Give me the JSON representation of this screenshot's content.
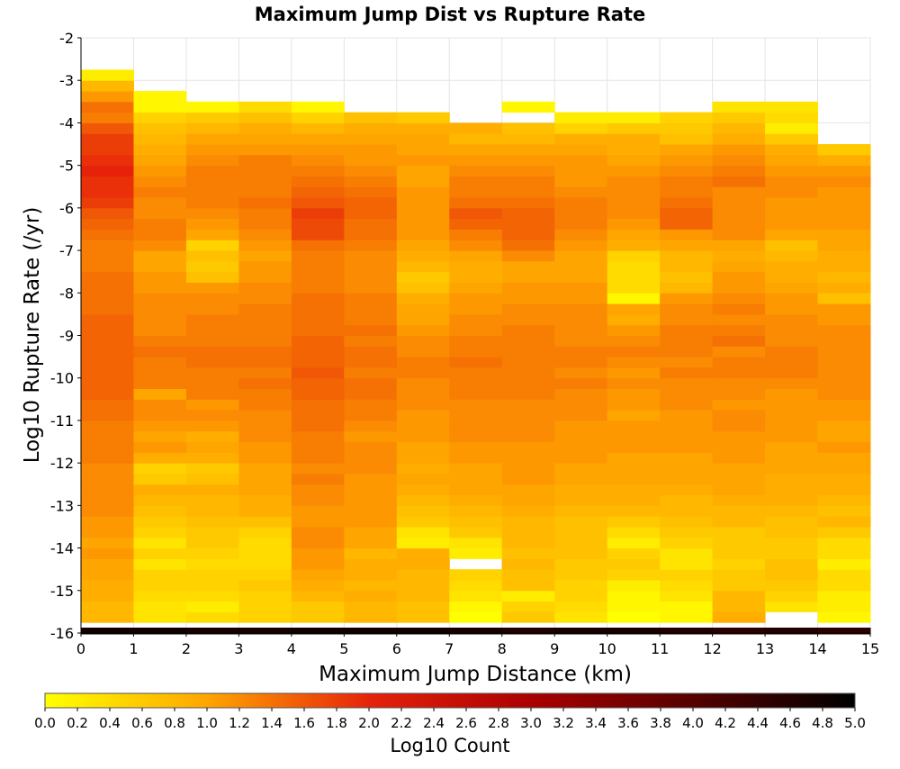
{
  "chart_data": {
    "type": "heatmap",
    "title": "Maximum Jump Dist vs Rupture Rate",
    "xlabel": "Maximum Jump Distance (km)",
    "ylabel": "Log10 Rupture Rate (/yr)",
    "xlim": [
      0,
      15
    ],
    "ylim": [
      -16,
      -2
    ],
    "x_ticks": [
      "0",
      "1",
      "2",
      "3",
      "4",
      "5",
      "6",
      "7",
      "8",
      "9",
      "10",
      "11",
      "12",
      "13",
      "14",
      "15"
    ],
    "y_ticks": [
      "-2",
      "-3",
      "-4",
      "-5",
      "-6",
      "-7",
      "-8",
      "-9",
      "-10",
      "-11",
      "-12",
      "-13",
      "-14",
      "-15",
      "-16"
    ],
    "x_bins": [
      0,
      1,
      2,
      3,
      4,
      5,
      6,
      7,
      8,
      9,
      10,
      11,
      12,
      13,
      14
    ],
    "y_bins": [
      -16.0,
      -15.75,
      -15.5,
      -15.25,
      -15.0,
      -14.75,
      -14.5,
      -14.25,
      -14.0,
      -13.75,
      -13.5,
      -13.25,
      -13.0,
      -12.75,
      -12.5,
      -12.25,
      -12.0,
      -11.75,
      -11.5,
      -11.25,
      -11.0,
      -10.75,
      -10.5,
      -10.25,
      -10.0,
      -9.75,
      -9.5,
      -9.25,
      -9.0,
      -8.75,
      -8.5,
      -8.25,
      -8.0,
      -7.75,
      -7.5,
      -7.25,
      -7.0,
      -6.75,
      -6.5,
      -6.25,
      -6.0,
      -5.75,
      -5.5,
      -5.25,
      -5.0,
      -4.75,
      -4.5,
      -4.25,
      -4.0,
      -3.75,
      -3.5,
      -3.25,
      -3.0
    ],
    "bin_width_x": 1,
    "bin_height_y": 0.25,
    "colorbar": {
      "label": "Log10 Count",
      "range": [
        0,
        5
      ],
      "ticks": [
        "0.0",
        "0.2",
        "0.4",
        "0.6",
        "0.8",
        "1.0",
        "1.2",
        "1.4",
        "1.6",
        "1.8",
        "2.0",
        "2.2",
        "2.4",
        "2.6",
        "2.8",
        "3.0",
        "3.2",
        "3.4",
        "3.6",
        "3.8",
        "4.0",
        "4.2",
        "4.4",
        "4.6",
        "4.8",
        "5.0"
      ],
      "stops": [
        "#ffff00",
        "#ffa500",
        "#e6230a",
        "#aa0000",
        "#550000",
        "#000000"
      ]
    },
    "grid": true,
    "values": [
      [
        4.8,
        4.8,
        4.7,
        4.7,
        4.8,
        4.8,
        4.8,
        4.7,
        4.6,
        4.7,
        4.7,
        4.6,
        4.5,
        4.6,
        4.5
      ],
      [
        0.8,
        0.3,
        0.4,
        0.5,
        0.6,
        0.8,
        0.7,
        0.0,
        0.6,
        0.3,
        0.0,
        0.1,
        0.9,
        null,
        0.1
      ],
      [
        0.8,
        0.3,
        0.2,
        0.5,
        0.6,
        0.8,
        0.7,
        0.1,
        0.5,
        0.4,
        0.1,
        0.1,
        0.8,
        0.3,
        0.2
      ],
      [
        0.9,
        0.4,
        0.4,
        0.5,
        0.8,
        0.9,
        0.8,
        0.3,
        0.2,
        0.5,
        0.1,
        0.3,
        0.8,
        0.5,
        0.2
      ],
      [
        0.9,
        0.5,
        0.5,
        0.6,
        0.9,
        0.8,
        0.8,
        0.4,
        0.7,
        0.5,
        0.2,
        0.4,
        0.6,
        0.6,
        0.4
      ],
      [
        1.0,
        0.5,
        0.5,
        0.5,
        1.0,
        0.9,
        0.8,
        0.5,
        0.7,
        0.6,
        0.5,
        0.5,
        0.6,
        0.7,
        0.4
      ],
      [
        1.0,
        0.3,
        0.4,
        0.4,
        1.1,
        0.9,
        0.9,
        null,
        0.8,
        0.6,
        0.6,
        0.3,
        0.5,
        0.7,
        0.2
      ],
      [
        1.1,
        0.5,
        0.5,
        0.4,
        1.1,
        0.8,
        0.9,
        0.2,
        0.7,
        0.7,
        0.5,
        0.3,
        0.6,
        0.6,
        0.4
      ],
      [
        1.0,
        0.3,
        0.6,
        0.4,
        1.2,
        1.0,
        0.2,
        0.3,
        0.8,
        0.7,
        0.2,
        0.5,
        0.6,
        0.6,
        0.4
      ],
      [
        1.1,
        0.5,
        0.6,
        0.5,
        1.2,
        1.0,
        0.3,
        0.6,
        0.8,
        0.7,
        0.4,
        0.6,
        0.6,
        0.7,
        0.6
      ],
      [
        1.1,
        0.6,
        0.7,
        0.7,
        1.1,
        1.1,
        0.6,
        0.7,
        0.8,
        0.7,
        0.6,
        0.7,
        0.8,
        0.7,
        0.8
      ],
      [
        1.2,
        0.7,
        0.8,
        0.9,
        1.1,
        1.1,
        0.7,
        0.8,
        0.9,
        0.8,
        0.8,
        0.8,
        0.8,
        0.8,
        0.7
      ],
      [
        1.2,
        0.8,
        0.8,
        0.9,
        1.2,
        1.1,
        0.8,
        0.9,
        1.0,
        0.9,
        0.9,
        0.8,
        0.9,
        0.9,
        0.8
      ],
      [
        1.2,
        0.9,
        0.9,
        1.0,
        1.2,
        1.1,
        0.9,
        1.0,
        1.0,
        0.9,
        0.9,
        0.9,
        1.0,
        0.9,
        0.9
      ],
      [
        1.2,
        0.6,
        0.7,
        1.0,
        1.3,
        1.1,
        1.0,
        1.0,
        1.1,
        1.0,
        1.0,
        1.0,
        1.0,
        0.9,
        0.9
      ],
      [
        1.2,
        0.5,
        0.6,
        1.0,
        1.2,
        1.2,
        0.9,
        1.0,
        1.1,
        1.0,
        1.0,
        1.0,
        1.0,
        1.0,
        1.0
      ],
      [
        1.3,
        0.9,
        0.9,
        1.1,
        1.3,
        1.2,
        1.0,
        1.1,
        1.1,
        1.1,
        1.0,
        1.0,
        1.1,
        1.0,
        1.0
      ],
      [
        1.3,
        1.1,
        1.0,
        1.1,
        1.3,
        1.2,
        1.0,
        1.1,
        1.1,
        1.1,
        1.1,
        1.1,
        1.1,
        1.0,
        1.1
      ],
      [
        1.3,
        1.0,
        0.9,
        1.2,
        1.3,
        1.1,
        1.1,
        1.2,
        1.2,
        1.1,
        1.1,
        1.1,
        1.1,
        1.1,
        1.0
      ],
      [
        1.3,
        1.1,
        1.1,
        1.2,
        1.4,
        1.2,
        1.1,
        1.2,
        1.2,
        1.1,
        1.1,
        1.1,
        1.2,
        1.1,
        1.0
      ],
      [
        1.4,
        1.2,
        1.2,
        1.2,
        1.4,
        1.3,
        1.1,
        1.2,
        1.2,
        1.2,
        1.0,
        1.1,
        1.2,
        1.1,
        1.1
      ],
      [
        1.4,
        1.2,
        1.1,
        1.3,
        1.4,
        1.3,
        1.2,
        1.2,
        1.2,
        1.2,
        1.1,
        1.2,
        1.1,
        1.1,
        1.1
      ],
      [
        1.5,
        1.0,
        1.3,
        1.3,
        1.5,
        1.4,
        1.2,
        1.3,
        1.3,
        1.2,
        1.1,
        1.2,
        1.2,
        1.1,
        1.2
      ],
      [
        1.5,
        1.3,
        1.3,
        1.4,
        1.5,
        1.4,
        1.2,
        1.3,
        1.3,
        1.3,
        1.2,
        1.2,
        1.2,
        1.2,
        1.2
      ],
      [
        1.5,
        1.3,
        1.3,
        1.3,
        1.6,
        1.3,
        1.3,
        1.3,
        1.3,
        1.2,
        1.1,
        1.3,
        1.3,
        1.3,
        1.2
      ],
      [
        1.5,
        1.3,
        1.4,
        1.4,
        1.5,
        1.4,
        1.3,
        1.4,
        1.3,
        1.3,
        1.2,
        1.2,
        1.3,
        1.3,
        1.2
      ],
      [
        1.5,
        1.4,
        1.4,
        1.4,
        1.5,
        1.4,
        1.2,
        1.3,
        1.3,
        1.3,
        1.3,
        1.3,
        1.2,
        1.3,
        1.2
      ],
      [
        1.5,
        1.3,
        1.3,
        1.3,
        1.5,
        1.3,
        1.2,
        1.3,
        1.3,
        1.2,
        1.2,
        1.3,
        1.4,
        1.2,
        1.2
      ],
      [
        1.5,
        1.2,
        1.3,
        1.3,
        1.4,
        1.4,
        1.1,
        1.2,
        1.3,
        1.2,
        1.1,
        1.3,
        1.3,
        1.2,
        1.2
      ],
      [
        1.5,
        1.2,
        1.3,
        1.3,
        1.4,
        1.3,
        1.0,
        1.2,
        1.2,
        1.2,
        0.9,
        1.2,
        1.2,
        1.2,
        1.1
      ],
      [
        1.4,
        1.2,
        1.2,
        1.3,
        1.4,
        1.3,
        1.0,
        1.1,
        1.2,
        1.2,
        1.0,
        1.2,
        1.3,
        1.1,
        1.1
      ],
      [
        1.4,
        1.2,
        1.2,
        1.2,
        1.4,
        1.3,
        0.9,
        1.1,
        1.1,
        1.1,
        0.1,
        1.1,
        1.2,
        1.1,
        0.7
      ],
      [
        1.4,
        1.1,
        1.1,
        1.2,
        1.3,
        1.2,
        0.7,
        1.0,
        1.1,
        1.1,
        0.4,
        0.8,
        1.1,
        1.0,
        0.9
      ],
      [
        1.4,
        1.1,
        0.7,
        1.1,
        1.3,
        1.2,
        0.6,
        0.9,
        1.0,
        1.0,
        0.4,
        0.7,
        1.1,
        0.9,
        0.8
      ],
      [
        1.3,
        1.0,
        0.6,
        1.1,
        1.3,
        1.2,
        0.8,
        0.9,
        1.0,
        1.0,
        0.4,
        0.8,
        1.0,
        0.9,
        0.9
      ],
      [
        1.3,
        1.0,
        0.7,
        1.0,
        1.3,
        1.2,
        0.9,
        1.0,
        1.2,
        1.0,
        0.5,
        0.8,
        0.9,
        0.8,
        0.9
      ],
      [
        1.3,
        1.2,
        0.5,
        1.1,
        1.4,
        1.3,
        1.0,
        1.2,
        1.4,
        1.1,
        0.9,
        1.0,
        1.0,
        0.7,
        1.0
      ],
      [
        1.4,
        1.3,
        1.0,
        1.2,
        1.7,
        1.4,
        1.1,
        1.3,
        1.5,
        1.2,
        1.0,
        1.1,
        1.2,
        1.0,
        1.0
      ],
      [
        1.5,
        1.3,
        1.1,
        1.3,
        1.7,
        1.4,
        1.1,
        1.5,
        1.5,
        1.3,
        1.1,
        1.5,
        1.2,
        1.1,
        1.1
      ],
      [
        1.6,
        1.2,
        1.2,
        1.3,
        1.8,
        1.5,
        1.1,
        1.6,
        1.5,
        1.3,
        1.2,
        1.5,
        1.2,
        1.1,
        1.1
      ],
      [
        1.8,
        1.2,
        1.3,
        1.4,
        1.6,
        1.5,
        1.1,
        1.4,
        1.4,
        1.3,
        1.2,
        1.4,
        1.2,
        1.1,
        1.1
      ],
      [
        1.9,
        1.3,
        1.3,
        1.3,
        1.5,
        1.4,
        1.1,
        1.3,
        1.3,
        1.2,
        1.2,
        1.3,
        1.2,
        1.2,
        1.1
      ],
      [
        1.9,
        1.2,
        1.3,
        1.3,
        1.4,
        1.3,
        1.0,
        1.3,
        1.3,
        1.1,
        1.2,
        1.3,
        1.4,
        1.2,
        1.2
      ],
      [
        2.0,
        1.1,
        1.3,
        1.3,
        1.3,
        1.2,
        1.0,
        1.2,
        1.2,
        1.1,
        1.1,
        1.2,
        1.3,
        1.1,
        1.1
      ],
      [
        1.9,
        1.0,
        1.2,
        1.3,
        1.2,
        1.1,
        1.1,
        1.1,
        1.1,
        1.1,
        1.0,
        1.1,
        1.2,
        1.0,
        0.9
      ],
      [
        1.8,
        0.9,
        1.1,
        1.1,
        1.1,
        1.1,
        1.0,
        1.0,
        1.0,
        1.0,
        0.9,
        1.0,
        1.1,
        0.9,
        0.6
      ],
      [
        1.8,
        0.8,
        1.0,
        1.0,
        1.0,
        1.0,
        1.0,
        0.8,
        0.8,
        0.9,
        0.9,
        0.7,
        0.9,
        0.6,
        null
      ],
      [
        1.6,
        0.7,
        0.8,
        0.9,
        0.8,
        0.9,
        0.9,
        0.9,
        0.7,
        0.5,
        0.6,
        0.6,
        0.8,
        0.2,
        null
      ],
      [
        1.3,
        0.5,
        0.6,
        0.7,
        0.5,
        0.7,
        0.6,
        null,
        null,
        0.2,
        0.2,
        0.5,
        0.6,
        0.4,
        null
      ],
      [
        1.4,
        0.1,
        0.1,
        0.4,
        0.1,
        null,
        null,
        null,
        0.1,
        null,
        null,
        null,
        0.3,
        0.3,
        null
      ],
      [
        1.1,
        0.1,
        null,
        null,
        null,
        null,
        null,
        null,
        null,
        null,
        null,
        null,
        null,
        null,
        null
      ],
      [
        0.8,
        null,
        null,
        null,
        null,
        null,
        null,
        null,
        null,
        null,
        null,
        null,
        null,
        null,
        null
      ],
      [
        0.2,
        null,
        null,
        null,
        null,
        null,
        null,
        null,
        null,
        null,
        null,
        null,
        null,
        null,
        null
      ]
    ]
  }
}
